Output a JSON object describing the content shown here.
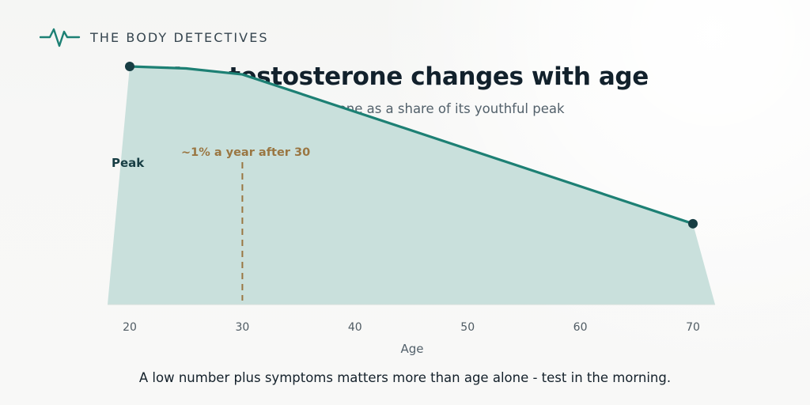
{
  "brand": {
    "name": "THE BODY DETECTIVES",
    "icon": "heartbeat-line-icon"
  },
  "header": {
    "title": "How testosterone changes with age",
    "subtitle": "Total testosterone as a share of its youthful peak"
  },
  "footer": {
    "note": "A low number plus symptoms matters more than age alone - test in the morning."
  },
  "colors": {
    "line": "#1d8074",
    "area": "#c9e0dc",
    "annotation": "#9a7642",
    "dark": "#173d43",
    "axis": "#9aa2a7",
    "tick": "#4f5b63"
  },
  "chart_data": {
    "type": "area",
    "subtitle": "Total testosterone as a share of its youthful peak",
    "xlabel": "Age",
    "ylabel": "",
    "x": [
      20,
      25,
      30,
      70
    ],
    "values": [
      100,
      99,
      96,
      21
    ],
    "xlim": [
      20,
      70
    ],
    "ylim": [
      -20,
      100
    ],
    "x_ticks": [
      20,
      30,
      40,
      50,
      60,
      70
    ],
    "grid": false,
    "legend": "none",
    "annotations": [
      {
        "label": "~1% a year after 30",
        "x": 30,
        "style": "dashed-vertical-line"
      },
      {
        "label": "Peak",
        "x": 20,
        "y": 100
      }
    ],
    "highlighted_points": [
      {
        "x": 20,
        "y": 100
      },
      {
        "x": 70,
        "y": 21
      }
    ]
  }
}
